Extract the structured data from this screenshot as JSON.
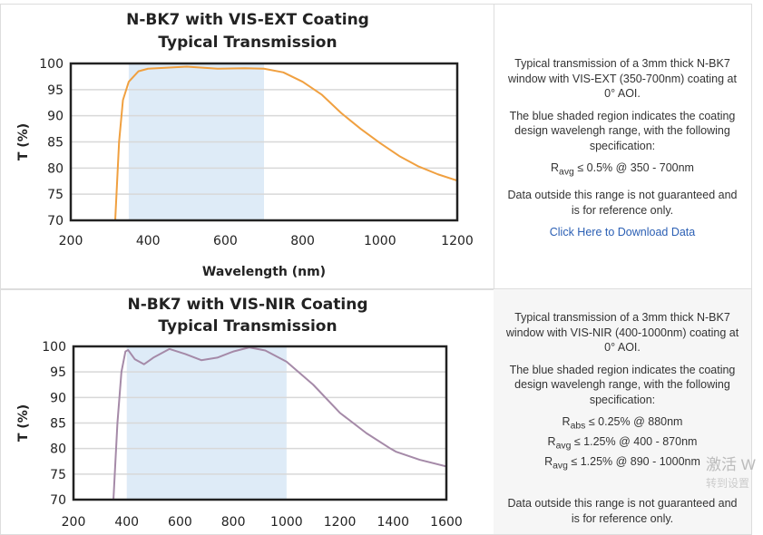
{
  "chart_data": [
    {
      "type": "line",
      "title": [
        "N-BK7 with VIS-EXT Coating",
        "Typical Transmission"
      ],
      "xlabel": "Wavelength (nm)",
      "ylabel": "T (%)",
      "xlim": [
        200,
        1200
      ],
      "ylim": [
        70,
        100
      ],
      "xticks": [
        "200",
        "400",
        "600",
        "800",
        "1000",
        "1200"
      ],
      "yticks": [
        "70",
        "75",
        "80",
        "85",
        "90",
        "95",
        "100"
      ],
      "grid": "horizontal",
      "line_color": "#f0a040",
      "shaded_region": [
        350,
        700
      ],
      "shade_color": "#deebf7",
      "x": [
        315,
        325,
        335,
        350,
        375,
        400,
        500,
        580,
        650,
        700,
        750,
        800,
        850,
        900,
        950,
        1000,
        1050,
        1100,
        1150,
        1200
      ],
      "y": [
        70,
        85,
        93,
        96.5,
        98.5,
        99,
        99.4,
        99,
        99.1,
        99,
        98.3,
        96.5,
        94,
        90.5,
        87.5,
        84.8,
        82.3,
        80.3,
        78.8,
        77.6
      ]
    },
    {
      "type": "line",
      "title": [
        "N-BK7 with VIS-NIR Coating",
        "Typical Transmission"
      ],
      "xlabel": "",
      "ylabel": "T (%)",
      "xlim": [
        200,
        1600
      ],
      "ylim": [
        70,
        100
      ],
      "xticks": [
        "200",
        "400",
        "600",
        "800",
        "1000",
        "1200",
        "1400",
        "1600"
      ],
      "yticks": [
        "70",
        "75",
        "80",
        "85",
        "90",
        "95",
        "100"
      ],
      "grid": "horizontal",
      "line_color": "#a58aa8",
      "shaded_region": [
        400,
        1000
      ],
      "shade_color": "#deebf7",
      "x": [
        350,
        365,
        380,
        395,
        405,
        430,
        465,
        500,
        560,
        620,
        680,
        740,
        800,
        860,
        920,
        1000,
        1100,
        1200,
        1300,
        1390,
        1410,
        1500,
        1600
      ],
      "y": [
        70,
        85,
        95,
        99,
        99.3,
        97.5,
        96.5,
        97.8,
        99.5,
        98.5,
        97.3,
        97.8,
        99,
        99.8,
        99.2,
        97,
        92.5,
        87,
        83,
        80,
        79.4,
        77.8,
        76.5
      ]
    }
  ],
  "desc": [
    {
      "p1": "Typical transmission of a 3mm thick N-BK7 window with VIS-EXT (350-700nm) coating at 0° AOI.",
      "p2": "The blue shaded region indicates the coating design wavelengh range, with the following specification:",
      "specs": [
        {
          "sym": "R",
          "sub": "avg",
          "txt": "≤ 0.5% @ 350 - 700nm"
        }
      ],
      "p3": "Data outside this range is not guaranteed and is for reference only.",
      "link": "Click Here to Download Data"
    },
    {
      "p1": "Typical transmission of a 3mm thick N-BK7 window with VIS-NIR (400-1000nm) coating at 0° AOI.",
      "p2": "The blue shaded region indicates the coating design wavelengh range, with the following specification:",
      "specs": [
        {
          "sym": "R",
          "sub": "abs",
          "txt": "≤ 0.25% @ 880nm"
        },
        {
          "sym": "R",
          "sub": "avg",
          "txt": "≤ 1.25% @ 400 - 870nm"
        },
        {
          "sym": "R",
          "sub": "avg",
          "txt": "≤ 1.25% @ 890 - 1000nm"
        }
      ],
      "p3": "Data outside this range is not guaranteed and is for reference only."
    }
  ],
  "watermark": {
    "line1": "激活 W",
    "line2": "转到设置"
  }
}
